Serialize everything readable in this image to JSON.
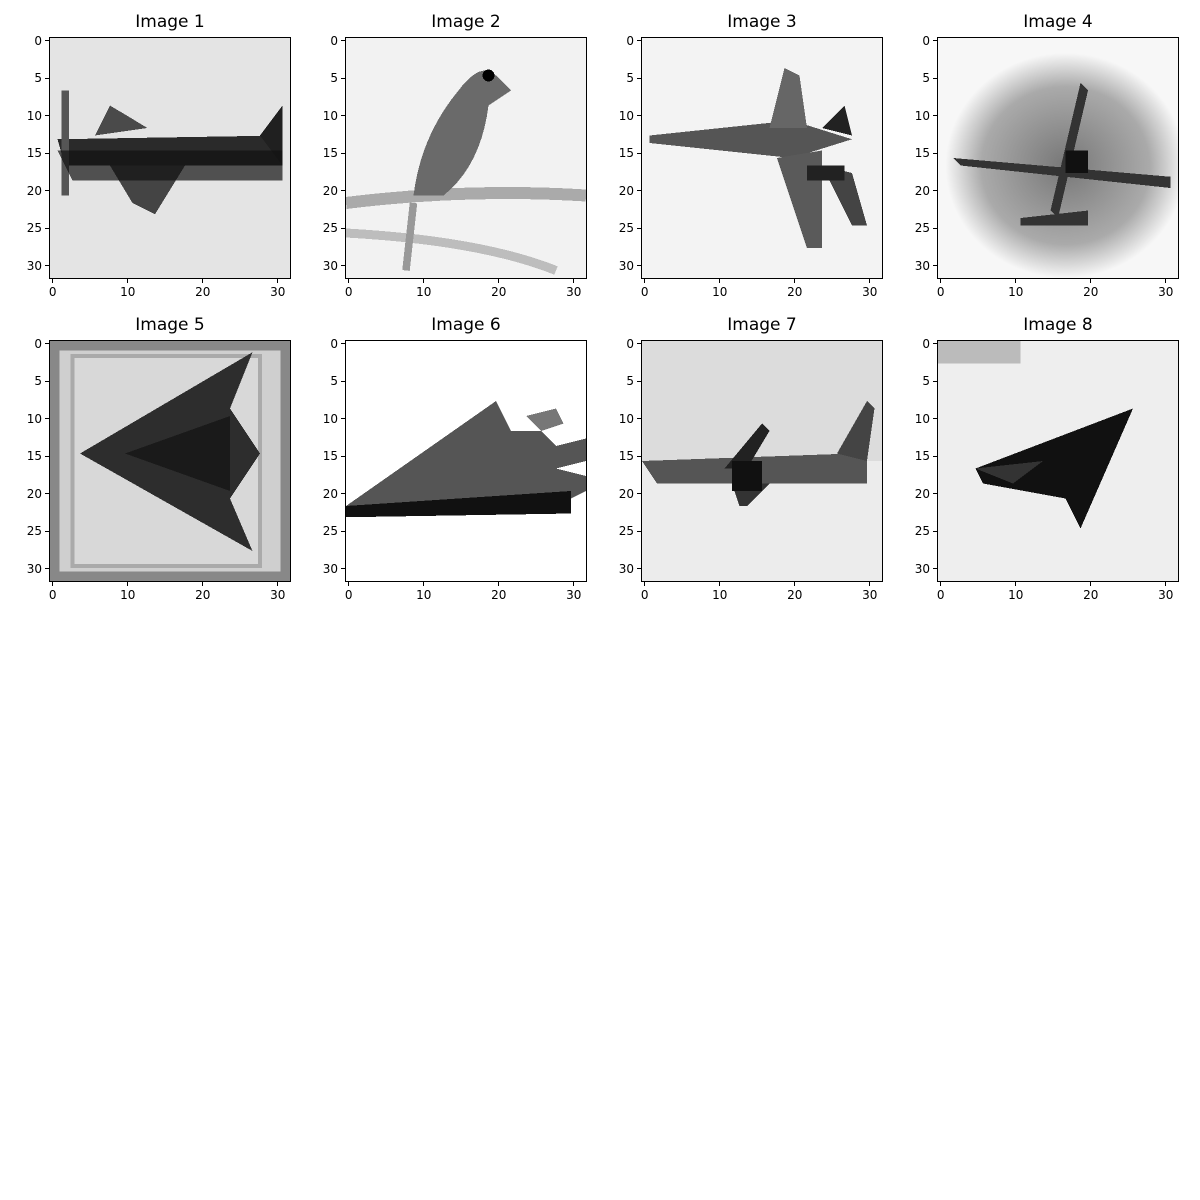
{
  "figure": {
    "panels": [
      {
        "title": "Image 1",
        "subject": "airplane-side-view",
        "background": "#e6e6e6"
      },
      {
        "title": "Image 2",
        "subject": "bird-on-branch",
        "background": "#f0f0f0"
      },
      {
        "title": "Image 3",
        "subject": "jet-fighter-top-view",
        "background": "#f2f2f2"
      },
      {
        "title": "Image 4",
        "subject": "plane-with-vignette",
        "background": "#f7f7f7"
      },
      {
        "title": "Image 5",
        "subject": "delta-wing-aircraft-framed",
        "background": "#cfcfcf"
      },
      {
        "title": "Image 6",
        "subject": "stealth-aircraft",
        "background": "#ffffff"
      },
      {
        "title": "Image 7",
        "subject": "airliner-in-flight",
        "background": "#d9d9d9"
      },
      {
        "title": "Image 8",
        "subject": "jet-silhouette",
        "background": "#eeeeee"
      }
    ],
    "x_ticks": [
      "0",
      "10",
      "20",
      "30"
    ],
    "y_ticks": [
      "0",
      "5",
      "10",
      "15",
      "20",
      "25",
      "30"
    ]
  }
}
